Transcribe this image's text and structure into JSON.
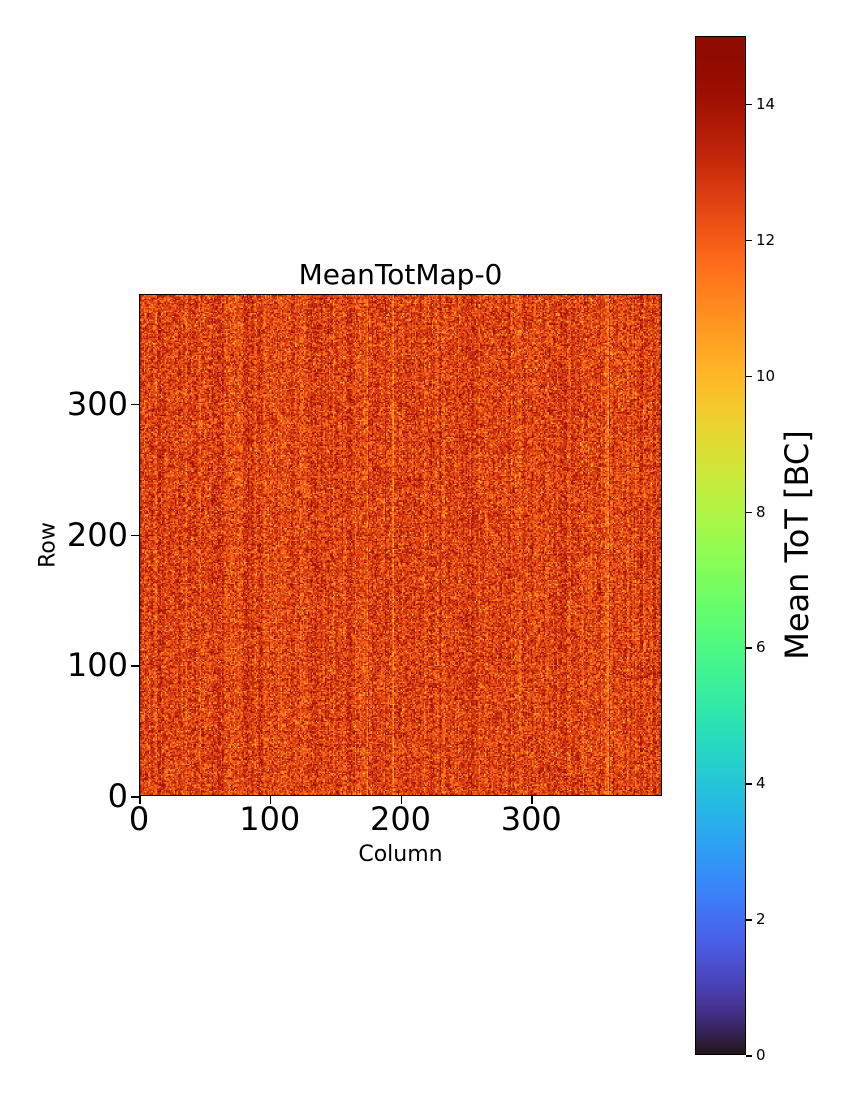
{
  "chart_data": {
    "type": "heatmap",
    "title": "MeanTotMap-0",
    "xlabel": "Column",
    "ylabel": "Row",
    "n_columns": 400,
    "n_rows": 384,
    "xlim": [
      0,
      400
    ],
    "ylim": [
      0,
      384
    ],
    "xticks": [
      0,
      100,
      200,
      300
    ],
    "yticks": [
      0,
      100,
      200,
      300
    ],
    "xtick_labels": [
      "0",
      "100",
      "200",
      "300"
    ],
    "ytick_labels": [
      "0",
      "100",
      "200",
      "300"
    ],
    "colormap": "turbo",
    "colorbar": {
      "label": "Mean ToT [BC]",
      "range": [
        0,
        15
      ],
      "ticks": [
        0,
        2,
        4,
        6,
        8,
        10,
        12,
        14
      ],
      "tick_labels": [
        "0",
        "2",
        "4",
        "6",
        "8",
        "10",
        "12",
        "14"
      ],
      "placement": "right"
    },
    "value_distribution": {
      "approx_mean": 12.6,
      "approx_std": 1.0,
      "approx_min": 9.5,
      "approx_max": 15
    }
  }
}
